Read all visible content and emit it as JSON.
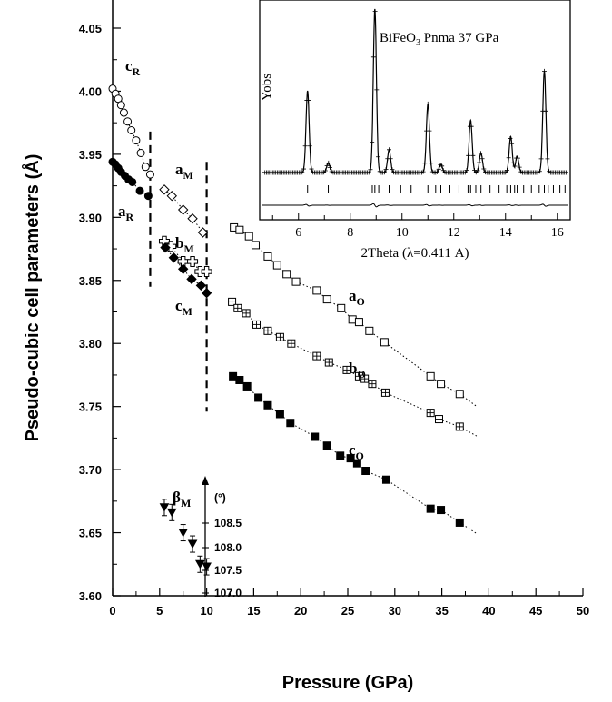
{
  "chart_data": [
    {
      "type": "scatter",
      "xlabel": "Pressure (GPa)",
      "ylabel": "Pseudo-cubic cell parameters (Å)",
      "xlim": [
        0,
        50
      ],
      "ylim": [
        3.6,
        4.08
      ],
      "x_ticks": [
        "0",
        "5",
        "10",
        "15",
        "20",
        "25",
        "30",
        "35",
        "40",
        "45",
        "50"
      ],
      "y_ticks": [
        "3.60",
        "3.65",
        "3.70",
        "3.75",
        "3.80",
        "3.85",
        "3.90",
        "3.95",
        "4.00",
        "4.05"
      ],
      "phase_boundaries_gpa": [
        4,
        10
      ],
      "series": [
        {
          "name": "c",
          "sub": "R",
          "marker": "open-circle",
          "x": [
            0,
            0.3,
            0.6,
            0.9,
            1.2,
            1.6,
            2.0,
            2.5,
            3.0,
            3.5,
            4.0
          ],
          "y": [
            4.002,
            3.998,
            3.994,
            3.989,
            3.983,
            3.976,
            3.969,
            3.961,
            3.951,
            3.94,
            3.934
          ]
        },
        {
          "name": "a",
          "sub": "R",
          "marker": "filled-circle",
          "x": [
            0,
            0.3,
            0.6,
            0.9,
            1.3,
            1.7,
            2.1,
            2.9,
            3.8
          ],
          "y": [
            3.944,
            3.942,
            3.939,
            3.936,
            3.933,
            3.93,
            3.928,
            3.921,
            3.917
          ]
        },
        {
          "name": "a",
          "sub": "M",
          "marker": "open-diamond",
          "x": [
            5.5,
            6.3,
            7.5,
            8.5,
            9.6
          ],
          "y": [
            3.922,
            3.917,
            3.906,
            3.899,
            3.888
          ]
        },
        {
          "name": "b",
          "sub": "M",
          "marker": "open-cross",
          "x": [
            5.5,
            6.2,
            7.5,
            8.5,
            9.3,
            10.0
          ],
          "y": [
            3.881,
            3.877,
            3.865,
            3.865,
            3.857,
            3.857
          ]
        },
        {
          "name": "c",
          "sub": "M",
          "marker": "filled-diamond",
          "x": [
            5.6,
            6.5,
            7.5,
            8.4,
            9.4,
            10.0
          ],
          "y": [
            3.876,
            3.868,
            3.859,
            3.851,
            3.846,
            3.84
          ]
        },
        {
          "name": "a",
          "sub": "O",
          "marker": "open-square",
          "x": [
            12.9,
            13.5,
            14.5,
            15.2,
            16.5,
            17.5,
            18.5,
            19.5,
            21.7,
            22.8,
            24.3,
            25.5,
            26.2,
            27.3,
            28.9,
            33.8,
            34.9,
            36.9
          ],
          "y": [
            3.892,
            3.89,
            3.885,
            3.878,
            3.869,
            3.862,
            3.855,
            3.849,
            3.842,
            3.835,
            3.828,
            3.819,
            3.817,
            3.81,
            3.801,
            3.774,
            3.768,
            3.76
          ]
        },
        {
          "name": "b",
          "sub": "O",
          "marker": "crossed-square",
          "x": [
            12.7,
            13.3,
            14.2,
            15.3,
            16.5,
            17.8,
            19.0,
            21.7,
            23.0,
            24.9,
            26.2,
            26.8,
            27.6,
            29.0,
            33.8,
            34.7,
            36.9
          ],
          "y": [
            3.833,
            3.828,
            3.824,
            3.815,
            3.81,
            3.805,
            3.8,
            3.79,
            3.785,
            3.779,
            3.774,
            3.772,
            3.768,
            3.761,
            3.745,
            3.74,
            3.734
          ]
        },
        {
          "name": "c",
          "sub": "O",
          "marker": "filled-square",
          "x": [
            12.8,
            13.5,
            14.3,
            15.5,
            16.5,
            17.8,
            18.9,
            21.5,
            22.8,
            24.2,
            25.3,
            26.0,
            26.9,
            29.1,
            33.8,
            34.9,
            36.9
          ],
          "y": [
            3.774,
            3.771,
            3.766,
            3.757,
            3.751,
            3.744,
            3.737,
            3.726,
            3.719,
            3.711,
            3.709,
            3.705,
            3.699,
            3.692,
            3.669,
            3.668,
            3.658
          ]
        },
        {
          "name": "β",
          "sub": "M",
          "marker": "filled-triangle-down",
          "x": [
            5.5,
            6.3,
            7.5,
            8.5,
            9.3,
            10.0
          ],
          "y": [
            3.67,
            3.666,
            3.65,
            3.641,
            3.625,
            3.623
          ]
        }
      ],
      "beta_axis": {
        "unit": "(°)",
        "ticks": [
          "108.5",
          "108.0",
          "107.5",
          "107.0"
        ]
      }
    },
    {
      "type": "line",
      "title": "BiFeO",
      "title_sub": "3",
      "title_rest": " Pnma 37 GPa",
      "xlabel": "2Theta (λ=0.411 A)",
      "ylabel": "Yobs",
      "xlim": [
        4.5,
        16.5
      ],
      "x_ticks": [
        "6",
        "8",
        "10",
        "12",
        "14",
        "16"
      ],
      "peaks": [
        {
          "pos": 6.35,
          "height": 0.5
        },
        {
          "pos": 7.15,
          "height": 0.06
        },
        {
          "pos": 8.95,
          "height": 1.0
        },
        {
          "pos": 9.5,
          "height": 0.14
        },
        {
          "pos": 11.0,
          "height": 0.42
        },
        {
          "pos": 11.5,
          "height": 0.05
        },
        {
          "pos": 12.65,
          "height": 0.32
        },
        {
          "pos": 13.05,
          "height": 0.12
        },
        {
          "pos": 14.2,
          "height": 0.22
        },
        {
          "pos": 14.45,
          "height": 0.1
        },
        {
          "pos": 15.5,
          "height": 0.62
        }
      ],
      "reflections": [
        6.35,
        7.15,
        8.85,
        8.95,
        9.1,
        9.5,
        9.95,
        10.35,
        11.0,
        11.3,
        11.5,
        11.85,
        12.2,
        12.55,
        12.65,
        12.85,
        13.05,
        13.4,
        13.75,
        14.05,
        14.2,
        14.35,
        14.45,
        14.7,
        15.0,
        15.3,
        15.5,
        15.65,
        15.85,
        16.1,
        16.3
      ]
    }
  ]
}
